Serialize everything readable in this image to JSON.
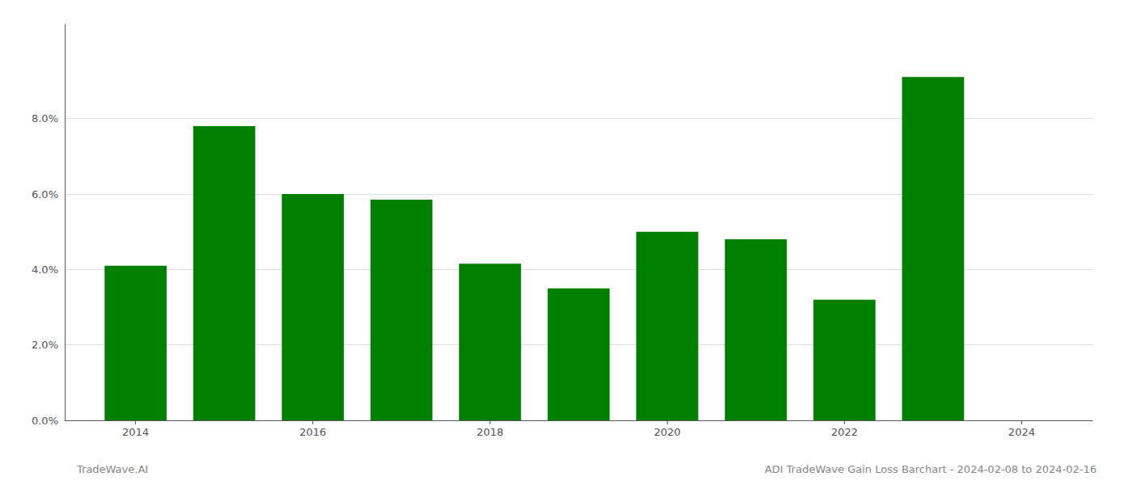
{
  "chart_data": {
    "type": "bar",
    "title": "ADI TradeWave Gain Loss Barchart - 2024-02-08 to 2024-02-16",
    "annotations": [
      "TradeWave.AI"
    ],
    "x": [
      2014,
      2015,
      2016,
      2017,
      2018,
      2019,
      2020,
      2021,
      2022,
      2023
    ],
    "values": [
      0.041,
      0.078,
      0.06,
      0.0585,
      0.0415,
      0.035,
      0.05,
      0.048,
      0.032,
      0.091
    ],
    "color": "#008000",
    "xlim": [
      2013.2,
      2024.8
    ],
    "xticks": [
      2014,
      2016,
      2018,
      2020,
      2022,
      2024
    ],
    "ylim": [
      0,
      0.105
    ],
    "yticks": [
      {
        "value": 0.0,
        "label": "0.0%"
      },
      {
        "value": 0.02,
        "label": "2.0%"
      },
      {
        "value": 0.04,
        "label": "4.0%"
      },
      {
        "value": 0.06,
        "label": "6.0%"
      },
      {
        "value": 0.08,
        "label": "8.0%"
      }
    ],
    "grid": true
  }
}
